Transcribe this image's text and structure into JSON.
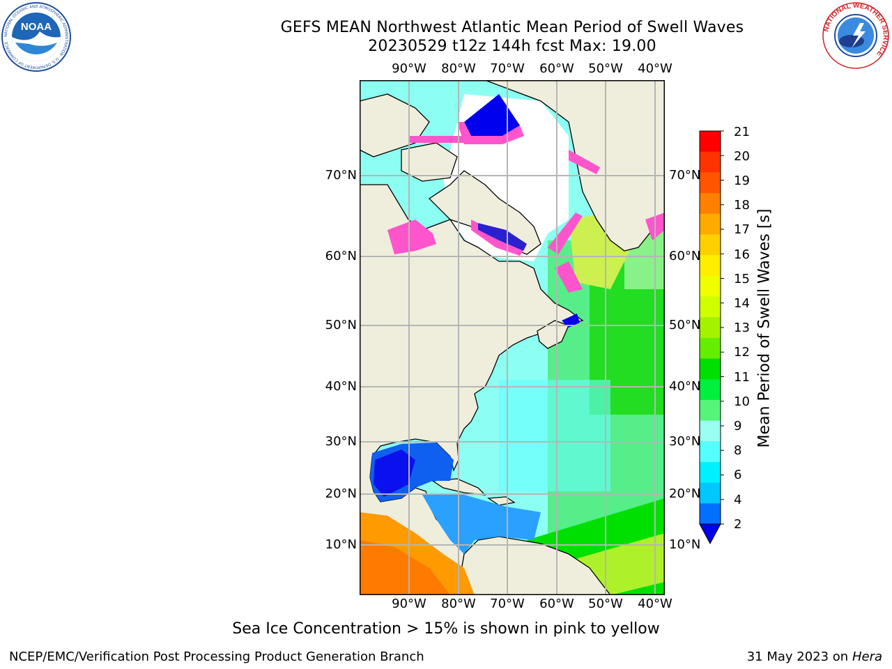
{
  "title_line1": "GEFS MEAN Northwest Atlantic Mean Period of Swell Waves",
  "title_line2": "20230529 t12z 144h fcst   Max: 19.00",
  "logos": {
    "noaa_text": "NOAA",
    "noaa_ring": "NATIONAL OCEANIC AND ATMOSPHERIC ADMINISTRATION · U.S. DEPARTMENT OF COMMERCE ·",
    "nws_ring": "NATIONAL WEATHER SERVICE"
  },
  "map": {
    "lon_labels": [
      "90°W",
      "80°W",
      "70°W",
      "60°W",
      "50°W",
      "40°W"
    ],
    "lat_labels": [
      "70°N",
      "60°N",
      "50°N",
      "40°N",
      "30°N",
      "20°N",
      "10°N"
    ],
    "land_color": "#efeedc",
    "sea_ice_color": "#ff55cc",
    "grid_color": "#b5b5b5"
  },
  "colorbar": {
    "title": "Mean Period of Swell Waves [s]",
    "ticks": [
      "21",
      "20",
      "19",
      "18",
      "17",
      "16",
      "15",
      "14",
      "13",
      "12",
      "11",
      "10",
      "9",
      "8",
      "6",
      "4",
      "2"
    ],
    "colors": [
      "#ff0000",
      "#ff3300",
      "#ff5500",
      "#ff8000",
      "#ffaa00",
      "#ffd000",
      "#ffee00",
      "#f0ff00",
      "#d0ff00",
      "#a4f200",
      "#66ee00",
      "#00e000",
      "#00f03c",
      "#55f57a",
      "#99fff0",
      "#55ffff",
      "#00f0ff",
      "#00c8ff",
      "#0070ff"
    ],
    "underflow_color": "#0000ee"
  },
  "footnote": "Sea Ice Concentration > 15% is shown in pink to yellow",
  "credit": "NCEP/EMC/Verification Post Processing Product Generation Branch",
  "run_date": "31 May 2023 on",
  "host": "Hera"
}
